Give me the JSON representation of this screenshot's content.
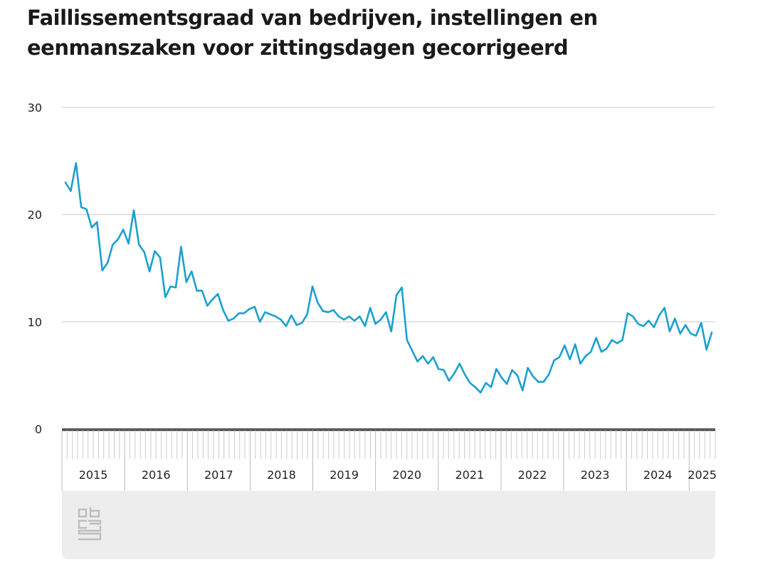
{
  "title_lines": [
    "Faillissementsgraad van bedrijven, instellingen en",
    "eenmanszaken voor zittingsdagen gecorrigeerd"
  ],
  "colors": {
    "line": "#1ba0d0",
    "grid": "#cccccc",
    "axis": "#5a5a5a",
    "panel": "#ededed",
    "logo": "#bdbdbd"
  },
  "logo_icon": "cbs-logo-icon",
  "chart_data": {
    "type": "line",
    "title": "Faillissementsgraad van bedrijven, instellingen en eenmanszaken voor zittingsdagen gecorrigeerd",
    "xlabel": "",
    "ylabel": "",
    "ylim": [
      0,
      30
    ],
    "yticks": [
      0,
      10,
      20,
      30
    ],
    "grid": true,
    "x_start": "2015-01",
    "x_end": "2025-05",
    "years": [
      "2015",
      "2016",
      "2017",
      "2018",
      "2019",
      "2020",
      "2021",
      "2022",
      "2023",
      "2024",
      "2025"
    ],
    "series": [
      {
        "values": [
          23.0,
          22.2,
          24.8,
          20.7,
          20.5,
          18.8,
          19.3,
          14.8,
          15.5,
          17.2,
          17.7,
          18.6,
          17.3,
          20.4,
          17.2,
          16.5,
          14.7,
          16.6,
          16.0,
          12.3,
          13.3,
          13.2,
          17.0,
          13.7,
          14.7,
          12.9,
          12.9,
          11.5,
          12.1,
          12.6,
          11.1,
          10.1,
          10.3,
          10.8,
          10.8,
          11.2,
          11.4,
          10.0,
          10.9,
          10.7,
          10.5,
          10.2,
          9.6,
          10.6,
          9.7,
          9.9,
          10.7,
          13.3,
          11.8,
          11.0,
          10.9,
          11.1,
          10.5,
          10.2,
          10.5,
          10.1,
          10.5,
          9.6,
          11.3,
          9.8,
          10.2,
          10.9,
          9.1,
          12.5,
          13.2,
          8.3,
          7.3,
          6.3,
          6.8,
          6.1,
          6.7,
          5.6,
          5.5,
          4.5,
          5.2,
          6.1,
          5.1,
          4.3,
          3.9,
          3.4,
          4.3,
          3.9,
          5.6,
          4.8,
          4.2,
          5.5,
          5.0,
          3.6,
          5.7,
          4.9,
          4.4,
          4.4,
          5.1,
          6.4,
          6.7,
          7.8,
          6.5,
          7.9,
          6.1,
          6.8,
          7.2,
          8.5,
          7.2,
          7.5,
          8.3,
          8.0,
          8.3,
          10.8,
          10.5,
          9.8,
          9.6,
          10.1,
          9.5,
          10.6,
          11.3,
          9.1,
          10.3,
          8.9,
          9.7,
          8.9,
          8.7,
          9.9,
          7.4,
          9.0
        ]
      }
    ]
  }
}
